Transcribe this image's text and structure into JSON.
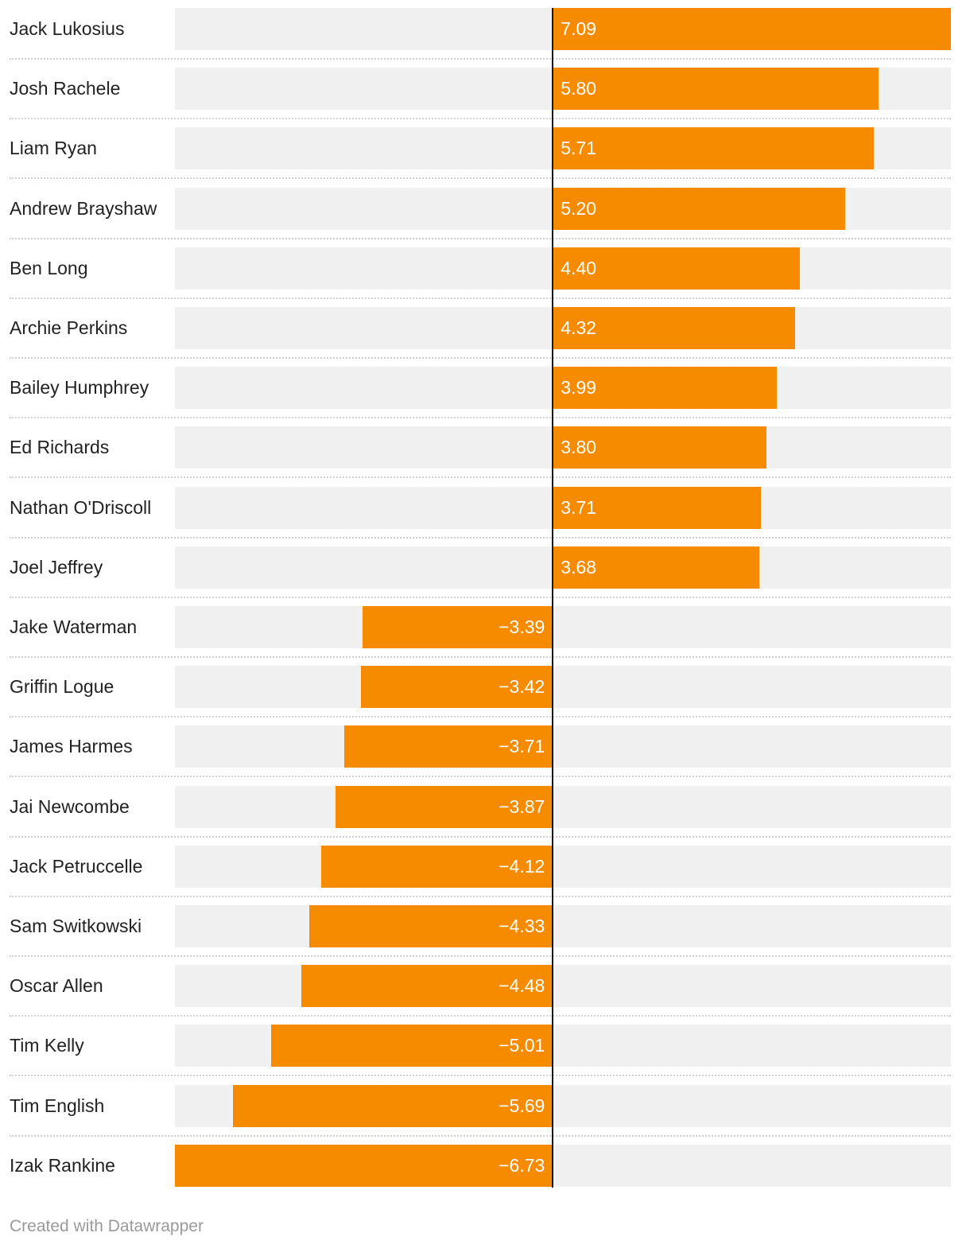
{
  "chart_data": {
    "type": "bar",
    "orientation": "horizontal",
    "categories": [
      "Jack Lukosius",
      "Josh Rachele",
      "Liam Ryan",
      "Andrew Brayshaw",
      "Ben Long",
      "Archie Perkins",
      "Bailey Humphrey",
      "Ed Richards",
      "Nathan O'Driscoll",
      "Joel Jeffrey",
      "Jake Waterman",
      "Griffin Logue",
      "James Harmes",
      "Jai Newcombe",
      "Jack Petruccelle",
      "Sam Switkowski",
      "Oscar Allen",
      "Tim Kelly",
      "Tim English",
      "Izak Rankine"
    ],
    "values": [
      7.09,
      5.8,
      5.71,
      5.2,
      4.4,
      4.32,
      3.99,
      3.8,
      3.71,
      3.68,
      -3.39,
      -3.42,
      -3.71,
      -3.87,
      -4.12,
      -4.33,
      -4.48,
      -5.01,
      -5.69,
      -6.73
    ],
    "value_labels": [
      "7.09",
      "5.80",
      "5.71",
      "5.20",
      "4.40",
      "4.32",
      "3.99",
      "3.80",
      "3.71",
      "3.68",
      "−3.39",
      "−3.42",
      "−3.71",
      "−3.87",
      "−4.12",
      "−4.33",
      "−4.48",
      "−5.01",
      "−5.69",
      "−6.73"
    ],
    "xlim": [
      -6.73,
      7.09
    ],
    "title": "",
    "xlabel": "",
    "ylabel": ""
  },
  "colors": {
    "bar": "#f68b00",
    "track": "#f0f0f0",
    "zero_line": "#1a1a1a"
  },
  "footer": {
    "credit": "Created with Datawrapper"
  }
}
